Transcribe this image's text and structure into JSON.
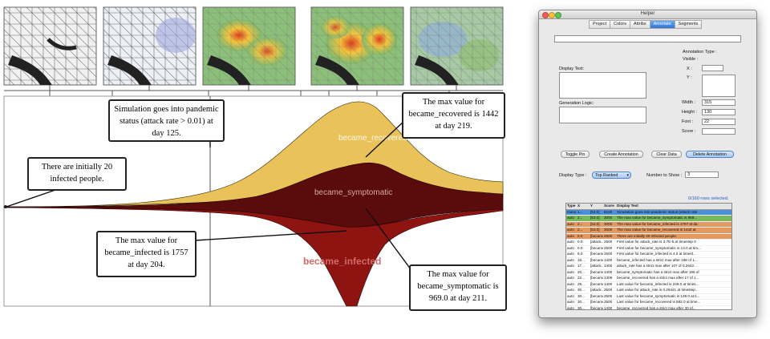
{
  "visualization": {
    "stream_labels": {
      "recovered": "became_recovered",
      "symptomatic": "became_symptomatic",
      "infected": "became_infected"
    },
    "colors": {
      "recovered": "#e9c25a",
      "symptomatic": "#5a0b0c",
      "infected": "#8e1412",
      "map_heat_low": "#7fb96e",
      "map_heat_high": "#e23a1c"
    },
    "annotations": [
      {
        "id": "initial",
        "text": "There are initially 20 infected people."
      },
      {
        "id": "pandemic",
        "text": "Simulation goes into pandemic status (attack rate > 0.01) at day 125."
      },
      {
        "id": "recovered_max",
        "text": "The max value for became_recovered is 1442 at day 219."
      },
      {
        "id": "infected_max",
        "text": "The max value for became_infected is 1757 at day 204."
      },
      {
        "id": "symptomatic_max",
        "text": "The max value for became_symptomatic is 969.0 at day 211."
      }
    ]
  },
  "helper_window": {
    "title": "Helper",
    "tabs": [
      "Project",
      "Colors",
      "Attribs",
      "Annotate",
      "Segments"
    ],
    "active_tab": "Annotate",
    "labels": {
      "display_text": "Display Text:",
      "generation_logic": "Generation Logic:",
      "annotation_type": "Annotation Type :",
      "visible": "Visible :",
      "x": "X :",
      "y": "Y :",
      "width": "Width :",
      "height": "Height :",
      "font": "Font :",
      "score": "Score :",
      "display_type": "Display Type :",
      "number_to_show": "Number to Show :"
    },
    "values": {
      "width": "315",
      "height": "130",
      "font": "22",
      "number_to_show": "3",
      "display_type": "Top Ranked"
    },
    "buttons": {
      "toggle_pin": "Toggle Pin",
      "create_annotation": "Create Annotation",
      "clear_data": "Clear Data",
      "delete_annotation": "Delete Annotation"
    },
    "selection_status": "0/160 rows selected.",
    "table": {
      "columns": [
        "Type",
        "X",
        "Y",
        "Score",
        "Display Text"
      ],
      "rows": [
        {
          "type": "manu",
          "x": "1...",
          "y": "[53.0]",
          "score": "5100",
          "text": "Simulation goes into pandemic status (attack rate",
          "highlight": "#4a8fd8"
        },
        {
          "type": "auto",
          "x": "2...",
          "y": "[53.0]",
          "score": "3000",
          "text": "The max value for became_symptomatic is 969...",
          "highlight": "#78b85e"
        },
        {
          "type": "auto",
          "x": "2...",
          "y": "[53.0]",
          "score": "3000",
          "text": "The max value for became_infected is 1757 at da",
          "highlight": "#e39a62"
        },
        {
          "type": "auto",
          "x": "2...",
          "y": "[53.0]",
          "score": "3000",
          "text": "The max value for became_recovered is 1442 at",
          "highlight": "#e39a62"
        },
        {
          "type": "auto",
          "x": "0.0",
          "y": "[became...",
          "score": "2500",
          "text": "There are initially 20 infected people.",
          "highlight": "#e39a62"
        },
        {
          "type": "auto",
          "x": "0.0",
          "y": "[attack...",
          "score": "2500",
          "text": "First value for attack_rate is 3.7E-5 at timestep 0",
          "highlight": ""
        },
        {
          "type": "auto",
          "x": "0.0",
          "y": "[became...",
          "score": "2500",
          "text": "First value for became_symptomatic is 13.0 at tim...",
          "highlight": ""
        },
        {
          "type": "auto",
          "x": "6.0",
          "y": "[became...",
          "score": "2500",
          "text": "First value for became_infected is 4.0 at timest...",
          "highlight": ""
        },
        {
          "type": "auto",
          "x": "18...",
          "y": "[became...",
          "score": "1400",
          "text": "became_infected has a strict max after 188 of 1...",
          "highlight": ""
        },
        {
          "type": "auto",
          "x": "17...",
          "y": "[attack...",
          "score": "1400",
          "text": "attack_rate has a strict max after 107 of 0.2642...",
          "highlight": ""
        },
        {
          "type": "auto",
          "x": "20...",
          "y": "[became...",
          "score": "1400",
          "text": "became_symptomatic has a strict max after 195 of",
          "highlight": ""
        },
        {
          "type": "auto",
          "x": "22...",
          "y": "[became...",
          "score": "1309",
          "text": "became_recovered has a strict max after 17 of 1...",
          "highlight": ""
        },
        {
          "type": "auto",
          "x": "29...",
          "y": "[became...",
          "score": "1400",
          "text": "Last value for became_infected is 248.0 at times...",
          "highlight": ""
        },
        {
          "type": "auto",
          "x": "30...",
          "y": "[attack...",
          "score": "2500",
          "text": "Last value for attack_rate is 0.26421 at timestep...",
          "highlight": ""
        },
        {
          "type": "auto",
          "x": "30...",
          "y": "[became...",
          "score": "2500",
          "text": "Last value for became_symptomatic is 129.0 at ti...",
          "highlight": ""
        },
        {
          "type": "auto",
          "x": "30...",
          "y": "[became...",
          "score": "2500",
          "text": "Last value for became_recovered is 582.0 at time...",
          "highlight": ""
        },
        {
          "type": "auto",
          "x": "30...",
          "y": "[became...",
          "score": "1400",
          "text": "became_recovered has a strict max after 30 of...",
          "highlight": ""
        }
      ]
    }
  }
}
